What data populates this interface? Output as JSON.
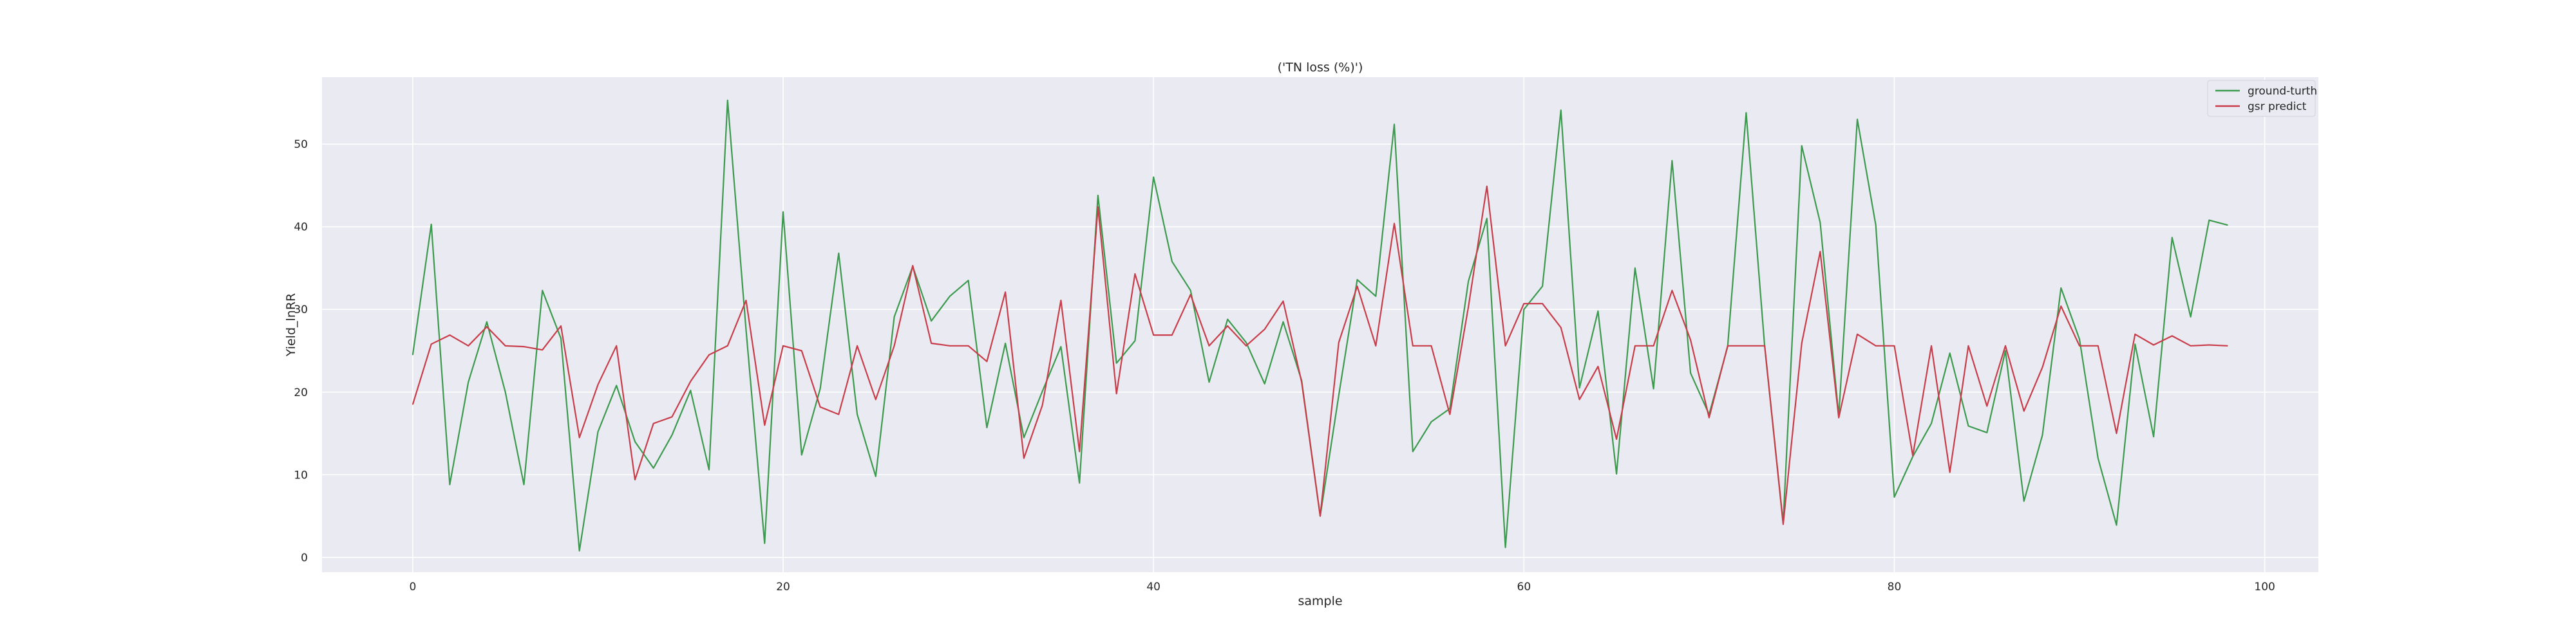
{
  "chart_data": {
    "type": "line",
    "title": "('TN loss (%)')",
    "xlabel": "sample",
    "ylabel": "Yield_lnRR",
    "xlim": [
      -4.9,
      102.9
    ],
    "ylim": [
      -1.8,
      58.1
    ],
    "xticks": [
      "0",
      "20",
      "40",
      "60",
      "80",
      "100"
    ],
    "yticks": [
      "0",
      "10",
      "20",
      "30",
      "40",
      "50"
    ],
    "grid": true,
    "legend_position": "top-right",
    "background": "#eaeaf2",
    "x": [
      0,
      1,
      2,
      3,
      4,
      5,
      6,
      7,
      8,
      9,
      10,
      11,
      12,
      13,
      14,
      15,
      16,
      17,
      18,
      19,
      20,
      21,
      22,
      23,
      24,
      25,
      26,
      27,
      28,
      29,
      30,
      31,
      32,
      33,
      34,
      35,
      36,
      37,
      38,
      39,
      40,
      41,
      42,
      43,
      44,
      45,
      46,
      47,
      48,
      49,
      50,
      51,
      52,
      53,
      54,
      55,
      56,
      57,
      58,
      59,
      60,
      61,
      62,
      63,
      64,
      65,
      66,
      67,
      68,
      69,
      70,
      71,
      72,
      73,
      74,
      75,
      76,
      77,
      78,
      79,
      80,
      81,
      82,
      83,
      84,
      85,
      86,
      87,
      88,
      89,
      90,
      91,
      92,
      93,
      94,
      95,
      96,
      97,
      98
    ],
    "series": [
      {
        "name": "ground-turth",
        "color": "#3c9a4e",
        "values": [
          24.5,
          40.3,
          8.8,
          21.2,
          28.5,
          20.0,
          8.8,
          32.3,
          26.5,
          0.8,
          15.2,
          20.8,
          14.0,
          10.8,
          14.8,
          20.2,
          10.6,
          55.3,
          27.5,
          1.7,
          41.8,
          12.4,
          20.4,
          36.8,
          17.3,
          9.8,
          29.1,
          35.2,
          28.6,
          31.6,
          33.5,
          15.7,
          25.9,
          14.5,
          20.1,
          25.5,
          9.0,
          43.8,
          23.5,
          26.2,
          46.0,
          35.8,
          32.3,
          21.2,
          28.8,
          26.0,
          21.0,
          28.5,
          21.4,
          5.0,
          19.6,
          33.6,
          31.6,
          52.4,
          12.8,
          16.4,
          18.0,
          33.4,
          41.0,
          1.2,
          30.0,
          32.8,
          54.1,
          20.5,
          29.8,
          10.1,
          35.0,
          20.4,
          48.0,
          22.3,
          17.3,
          25.5,
          53.8,
          25.5,
          4.2,
          49.8,
          40.5,
          17.1,
          53.0,
          40.2,
          7.3,
          12.2,
          16.2,
          24.7,
          15.9,
          15.1,
          25.0,
          6.8,
          14.8,
          32.6,
          26.4,
          12.0,
          3.9,
          25.8,
          14.6,
          38.7,
          29.1,
          40.8,
          40.2
        ]
      },
      {
        "name": "gsr predict",
        "color": "#c83d49",
        "values": [
          18.5,
          25.8,
          26.9,
          25.6,
          27.9,
          25.6,
          25.5,
          25.1,
          28.0,
          14.5,
          20.9,
          25.6,
          9.4,
          16.2,
          17.0,
          21.3,
          24.5,
          25.6,
          31.1,
          16.0,
          25.6,
          25.0,
          18.2,
          17.3,
          25.6,
          19.1,
          25.6,
          35.3,
          25.9,
          25.6,
          25.6,
          23.7,
          32.1,
          12.0,
          18.4,
          31.1,
          12.8,
          42.4,
          19.8,
          34.3,
          26.9,
          26.9,
          31.8,
          25.6,
          28.0,
          25.6,
          27.6,
          31.0,
          21.2,
          5.0,
          26.0,
          32.8,
          25.6,
          40.4,
          25.6,
          25.6,
          17.3,
          30.3,
          44.9,
          25.6,
          30.7,
          30.7,
          27.8,
          19.1,
          23.1,
          14.3,
          25.6,
          25.6,
          32.3,
          26.3,
          16.9,
          25.6,
          25.6,
          25.6,
          4.0,
          25.9,
          37.0,
          16.9,
          27.0,
          25.6,
          25.6,
          12.3,
          25.6,
          10.3,
          25.6,
          18.3,
          25.6,
          17.7,
          23.0,
          30.4,
          25.6,
          25.6,
          15.0,
          27.0,
          25.7,
          26.8,
          25.6,
          25.7,
          25.6
        ]
      }
    ]
  }
}
